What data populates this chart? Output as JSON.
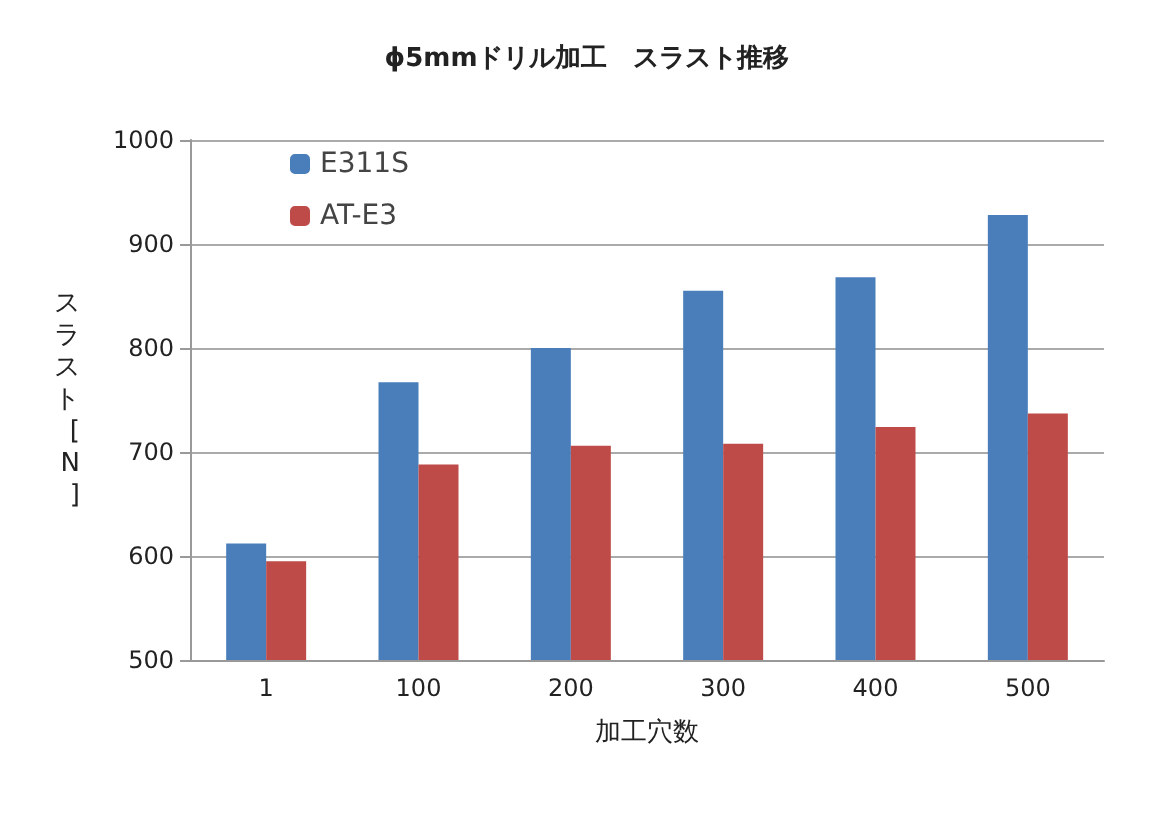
{
  "chart_data": {
    "type": "bar",
    "title": "ϕ5mmドリル加工　スラスト推移",
    "xlabel": "加工穴数",
    "ylabel": "スラスト[N]",
    "categories": [
      "1",
      "100",
      "200",
      "300",
      "400",
      "500"
    ],
    "series": [
      {
        "name": "E311S",
        "color": "#4a7ebb",
        "values": [
          612,
          767,
          800,
          855,
          868,
          928
        ]
      },
      {
        "name": "AT-E3",
        "color": "#be4b48",
        "values": [
          595,
          688,
          706,
          708,
          724,
          737
        ]
      }
    ],
    "ylim": [
      500,
      1000
    ],
    "yticks": [
      500,
      600,
      700,
      800,
      900,
      1000
    ],
    "grid": "y",
    "legend": "top left"
  }
}
